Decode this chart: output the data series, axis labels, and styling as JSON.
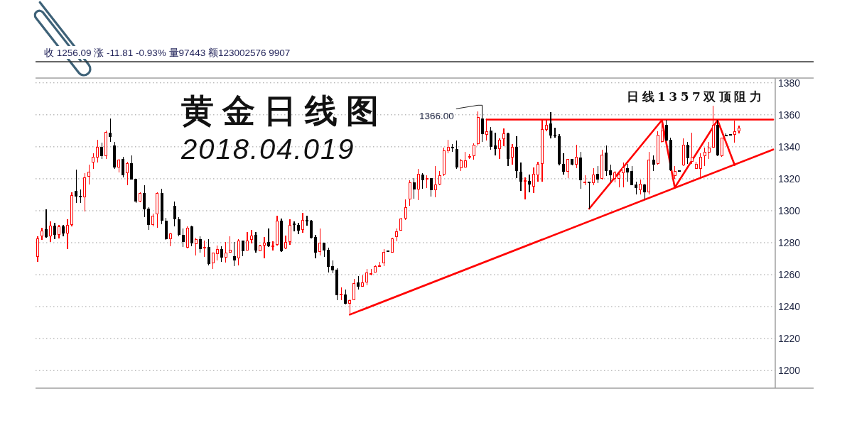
{
  "chart_data": {
    "type": "candlestick",
    "title": "黄金日线图",
    "subtitle": "2018.04.019",
    "annotations": [
      "收 1256.09 涨 -11.81 -0.93% 量97443 额123002576 9907",
      "1366.00",
      "日线1357双顶阻力"
    ],
    "categories": [
      null,
      null,
      null,
      null,
      null,
      null,
      null,
      null,
      null,
      null,
      null,
      null,
      null,
      null,
      null,
      null,
      null,
      null,
      null,
      null,
      null,
      null,
      null,
      null,
      null,
      null,
      null,
      null,
      null,
      null,
      null,
      null,
      null,
      null,
      null,
      null,
      null,
      null,
      null,
      null,
      null,
      null,
      null,
      null,
      null,
      null,
      null,
      null,
      null,
      null,
      null,
      null,
      null,
      null,
      null,
      null,
      null,
      null,
      null,
      null,
      null,
      null,
      null,
      null,
      null,
      null,
      null,
      null,
      null,
      null,
      null,
      null,
      null,
      null,
      null,
      null,
      null,
      null,
      null,
      null,
      null,
      null,
      null,
      null,
      null,
      null,
      null,
      null,
      null,
      null,
      null,
      null,
      null,
      null,
      null,
      null,
      null,
      null,
      null,
      null,
      null,
      null,
      null,
      null,
      null,
      null,
      null,
      null,
      null,
      null,
      null,
      null,
      null,
      null,
      null,
      null,
      null,
      null,
      null,
      null,
      null,
      null,
      null,
      null,
      null,
      null,
      null,
      null,
      null,
      null,
      null,
      null,
      null,
      null,
      null,
      null,
      null,
      null,
      null,
      null,
      null,
      null,
      null,
      null,
      null,
      null,
      null,
      null,
      null,
      null,
      null,
      null,
      null,
      null,
      null,
      null,
      null,
      null,
      null,
      null,
      null,
      null,
      null,
      null,
      null,
      null,
      null,
      null,
      null,
      null,
      null,
      null,
      null
    ],
    "ohlc": [
      [
        1271.2,
        1283.8,
        1268,
        1282.3
      ],
      [
        1284.2,
        1289.4,
        1281.6,
        1287.2
      ],
      [
        1288,
        1300.8,
        1283.2,
        1283.8
      ],
      [
        1284.2,
        1293.5,
        1280.5,
        1290.6
      ],
      [
        1290.6,
        1292.3,
        1282.3,
        1285
      ],
      [
        1285,
        1291,
        1282.6,
        1290
      ],
      [
        1290,
        1291,
        1284,
        1286
      ],
      [
        1286,
        1294.6,
        1276,
        1290.9
      ],
      [
        1291.2,
        1311.5,
        1290,
        1309.6
      ],
      [
        1312.3,
        1325.6,
        1305,
        1309.3
      ],
      [
        1309.2,
        1313.3,
        1305,
        1308.9
      ],
      [
        1308.6,
        1323.7,
        1299.4,
        1320.7
      ],
      [
        1321.4,
        1328.8,
        1316.4,
        1324.4
      ],
      [
        1330.3,
        1335.9,
        1326.3,
        1333.3
      ],
      [
        1333.7,
        1344.3,
        1330,
        1339.6
      ],
      [
        1339.6,
        1342.6,
        1332.2,
        1334.4
      ],
      [
        1334.4,
        1350.3,
        1332.5,
        1349.2
      ],
      [
        1348.8,
        1357.6,
        1342.9,
        1346.3
      ],
      [
        1340.4,
        1342.9,
        1326.3,
        1327.5
      ],
      [
        1327.5,
        1332.5,
        1324.1,
        1331.8
      ],
      [
        1332.2,
        1333.7,
        1320.7,
        1322.6
      ],
      [
        1323.7,
        1330.8,
        1316,
        1329.3
      ],
      [
        1329.3,
        1334.4,
        1319.5,
        1319.7
      ],
      [
        1319.7,
        1320,
        1304.9,
        1305.9
      ],
      [
        1305.9,
        1311.5,
        1305.3,
        1310.8
      ],
      [
        1310.8,
        1316,
        1296,
        1301.2
      ],
      [
        1301.2,
        1302,
        1288.2,
        1291.2
      ],
      [
        1291.2,
        1298.3,
        1290.1,
        1296.8
      ],
      [
        1298,
        1311.5,
        1289.4,
        1310.8
      ],
      [
        1310.8,
        1313.8,
        1291.6,
        1293.8
      ],
      [
        1293.5,
        1295.6,
        1281.8,
        1282.3
      ],
      [
        1282.3,
        1286.4,
        1277.9,
        1285.7
      ],
      [
        1303,
        1305.6,
        1290.4,
        1295
      ],
      [
        1294.6,
        1296,
        1284.2,
        1285.3
      ],
      [
        1284.7,
        1288.7,
        1277.3,
        1280.8
      ],
      [
        1277,
        1290.1,
        1276.5,
        1289
      ],
      [
        1290.1,
        1290.8,
        1277.7,
        1279.9
      ],
      [
        1279.4,
        1283.1,
        1272.1,
        1281.8
      ],
      [
        1281.8,
        1283.8,
        1274,
        1276.2
      ],
      [
        1276.8,
        1281.3,
        1271.1,
        1277.1
      ],
      [
        1276.9,
        1282.3,
        1266,
        1266.7
      ],
      [
        1267.2,
        1274,
        1263.8,
        1273.6
      ],
      [
        1273,
        1278.4,
        1268.9,
        1275.8
      ],
      [
        1275.8,
        1278,
        1268.2,
        1270.7
      ],
      [
        1270.7,
        1280.6,
        1267.7,
        1273.6
      ],
      [
        1274,
        1283.8,
        1273.6,
        1275.2
      ],
      [
        1271.5,
        1280.3,
        1265.5,
        1269.2
      ],
      [
        1270.4,
        1282.3,
        1266,
        1281.3
      ],
      [
        1281.3,
        1281.5,
        1271.5,
        1275
      ],
      [
        1275.5,
        1286.7,
        1275,
        1280.9
      ],
      [
        1281.8,
        1287.9,
        1279.4,
        1284.2
      ],
      [
        1284.7,
        1286.7,
        1273.6,
        1275.5
      ],
      [
        1275,
        1278.8,
        1274.5,
        1278
      ],
      [
        1278.4,
        1283.5,
        1270.1,
        1279.9
      ],
      [
        1280.3,
        1289,
        1277.4,
        1278
      ],
      [
        1277.7,
        1280.9,
        1275,
        1278
      ],
      [
        1278.8,
        1296.9,
        1278.4,
        1293.4
      ],
      [
        1293.7,
        1294.9,
        1274.2,
        1274.7
      ],
      [
        1276.5,
        1284.5,
        1276,
        1280.3
      ],
      [
        1280.6,
        1294.5,
        1278.8,
        1291.1
      ],
      [
        1291.6,
        1293.4,
        1287.2,
        1291.4
      ],
      [
        1291.1,
        1292.6,
        1285.3,
        1287.6
      ],
      [
        1288.2,
        1298.8,
        1286.4,
        1294
      ],
      [
        1294.1,
        1296.9,
        1290.8,
        1293.9
      ],
      [
        1293.4,
        1294,
        1282.8,
        1283.2
      ],
      [
        1283.2,
        1285,
        1270.1,
        1274
      ],
      [
        1274.5,
        1289,
        1271.8,
        1279.9
      ],
      [
        1279.9,
        1280.2,
        1271.1,
        1275.5
      ],
      [
        1275.5,
        1276.9,
        1261.3,
        1265.3
      ],
      [
        1265.3,
        1268.9,
        1260.9,
        1263.1
      ],
      [
        1262.8,
        1264.2,
        1244.1,
        1247.3
      ],
      [
        1247.3,
        1252.1,
        1244.1,
        1247.9
      ],
      [
        1247.3,
        1250.7,
        1241.2,
        1241.9
      ],
      [
        1242.2,
        1244.7,
        1235.8,
        1243.9
      ],
      [
        1244.2,
        1257.2,
        1243.9,
        1254.5
      ],
      [
        1255,
        1259,
        1250.6,
        1252.5
      ],
      [
        1252.8,
        1259.4,
        1252.5,
        1255
      ],
      [
        1255.4,
        1263.4,
        1253.5,
        1261.3
      ],
      [
        1260.4,
        1263.4,
        1259.4,
        1260.6
      ],
      [
        1261.6,
        1266,
        1261.3,
        1265.3
      ],
      [
        1265.4,
        1267.8,
        1264.9,
        1265.6
      ],
      [
        1267.2,
        1276.1,
        1265.3,
        1274.1
      ],
      [
        1275.1,
        1275.3,
        1274.8,
        1274.9
      ],
      [
        1274.1,
        1283,
        1273.7,
        1282.5
      ],
      [
        1283.7,
        1288.9,
        1280.8,
        1287
      ],
      [
        1287.8,
        1295.5,
        1287.4,
        1294.8
      ],
      [
        1295.5,
        1307,
        1294,
        1302.1
      ],
      [
        1307.3,
        1319.1,
        1303.2,
        1317.3
      ],
      [
        1317.3,
        1320.5,
        1307.6,
        1313.5
      ],
      [
        1313.5,
        1326.1,
        1306.5,
        1322.7
      ],
      [
        1322.3,
        1323.5,
        1313.9,
        1319.4
      ],
      [
        1320.1,
        1322.3,
        1314.3,
        1320.3
      ],
      [
        1320.1,
        1320.3,
        1308.7,
        1312.9
      ],
      [
        1312.9,
        1327.9,
        1308.5,
        1316.1
      ],
      [
        1316.8,
        1324.9,
        1316.1,
        1322
      ],
      [
        1322.7,
        1339.7,
        1321.7,
        1337.5
      ],
      [
        1337.5,
        1344.4,
        1336,
        1339.7
      ],
      [
        1339.8,
        1341.9,
        1336.7,
        1339.5
      ],
      [
        1338.5,
        1343.8,
        1326.1,
        1327.2
      ],
      [
        1326.7,
        1332.6,
        1324.7,
        1331.1
      ],
      [
        1327.2,
        1337,
        1327,
        1331.1
      ],
      [
        1333.8,
        1335.6,
        1332.3,
        1334.1
      ],
      [
        1334.5,
        1342.3,
        1332,
        1341.1
      ],
      [
        1341.9,
        1362.2,
        1340.9,
        1358.2
      ],
      [
        1357.5,
        1366,
        1343,
        1348.3
      ],
      [
        1347.9,
        1357.5,
        1343.9,
        1349.3
      ],
      [
        1350.1,
        1352.3,
        1338.2,
        1340
      ],
      [
        1340.4,
        1348.9,
        1334.5,
        1339
      ],
      [
        1339,
        1345.3,
        1332.6,
        1344.1
      ],
      [
        1344.9,
        1351.6,
        1340.4,
        1348.3
      ],
      [
        1348.3,
        1348.9,
        1327.9,
        1332.6
      ],
      [
        1333.5,
        1341.5,
        1329,
        1339.7
      ],
      [
        1339.7,
        1346.4,
        1320.4,
        1324.9
      ],
      [
        1324.1,
        1330.1,
        1312.3,
        1318.2
      ],
      [
        1318.3,
        1320.7,
        1307.1,
        1318.7
      ],
      [
        1318.2,
        1322.7,
        1311.6,
        1316.7
      ],
      [
        1315.3,
        1327.1,
        1311.3,
        1322.7
      ],
      [
        1322.2,
        1330.8,
        1318.2,
        1329
      ],
      [
        1329.6,
        1356.7,
        1318.2,
        1350.8
      ],
      [
        1350.8,
        1356.7,
        1349.8,
        1353.3
      ],
      [
        1354.2,
        1361.9,
        1345.3,
        1347.1
      ],
      [
        1347.3,
        1351.9,
        1345.9,
        1347.1
      ],
      [
        1346.4,
        1347.9,
        1328.6,
        1329.3
      ],
      [
        1329,
        1336,
        1322.7,
        1324.6
      ],
      [
        1324.6,
        1332.6,
        1320.4,
        1332.3
      ],
      [
        1332,
        1332.6,
        1328.6,
        1329
      ],
      [
        1329,
        1341.2,
        1326.7,
        1333.5
      ],
      [
        1333,
        1336.7,
        1313.8,
        1319.3
      ],
      [
        1317.9,
        1322.2,
        1316,
        1318.1
      ],
      [
        1318,
        1318.3,
        1301.3,
        1317.3
      ],
      [
        1317.5,
        1326.4,
        1316,
        1322.2
      ],
      [
        1323,
        1327.9,
        1317.5,
        1319.7
      ],
      [
        1320.1,
        1338.2,
        1319.7,
        1335
      ],
      [
        1336,
        1340.7,
        1321.9,
        1325.2
      ],
      [
        1325.2,
        1329,
        1318.2,
        1322.2
      ],
      [
        1320.1,
        1324.9,
        1317.8,
        1323.7
      ],
      [
        1320,
        1324.9,
        1314.5,
        1322.5
      ],
      [
        1323.7,
        1330.1,
        1314.5,
        1326.7
      ],
      [
        1326.4,
        1329.3,
        1318.2,
        1324.1
      ],
      [
        1324.6,
        1327.9,
        1316,
        1316.3
      ],
      [
        1316.3,
        1318.2,
        1310.1,
        1314.5
      ],
      [
        1313,
        1319.7,
        1310.1,
        1316.7
      ],
      [
        1316,
        1316.7,
        1307.1,
        1311.6
      ],
      [
        1311.6,
        1336.7,
        1310.1,
        1331.6
      ],
      [
        1331.6,
        1334.5,
        1324.9,
        1329
      ],
      [
        1329.3,
        1349.8,
        1329,
        1347.4
      ],
      [
        1343.4,
        1356.7,
        1342.7,
        1350.1
      ],
      [
        1353.3,
        1356.7,
        1343.4,
        1344.1
      ],
      [
        1344.1,
        1345.6,
        1324.9,
        1325.6
      ],
      [
        1321.9,
        1327.9,
        1320,
        1324.6
      ],
      [
        1325.2,
        1325.3,
        1324.8,
        1325
      ],
      [
        1328.6,
        1345.2,
        1327.9,
        1340.9
      ],
      [
        1341.2,
        1343,
        1329.3,
        1333
      ],
      [
        1331,
        1348.9,
        1329.3,
        1333.5
      ],
      [
        1326.4,
        1330.8,
        1326,
        1329
      ],
      [
        1326.4,
        1336,
        1320.7,
        1333.5
      ],
      [
        1334.5,
        1339.7,
        1327.9,
        1336.4
      ],
      [
        1336.7,
        1343,
        1332.3,
        1339.4
      ],
      [
        1339.7,
        1365.6,
        1339.4,
        1353.3
      ],
      [
        1353.3,
        1356.7,
        1334.1,
        1335
      ],
      [
        1334.5,
        1345.9,
        1333.8,
        1345.3
      ],
      [
        1347.3,
        1348.4,
        1346.5,
        1347
      ],
      [
        1347.5,
        1347.6,
        1347.3,
        1347.4
      ],
      [
        1347.9,
        1356.3,
        1342.7,
        1349.3
      ],
      [
        1349.8,
        1353.3,
        1348.3,
        1351.6
      ],
      null,
      null,
      null,
      null,
      null,
      null,
      null,
      null
    ],
    "colors": [
      "#ff0000",
      "#ff0000",
      "#000000",
      "#ff0000",
      "#000000",
      "#ff0000",
      "#000000",
      "#ff0000",
      "#ff0000",
      "#000000",
      "#000000",
      "#ff0000",
      "#ff0000",
      "#ff0000",
      "#ff0000",
      "#000000",
      "#ff0000",
      "#000000",
      "#000000",
      "#ff0000",
      "#000000",
      "#ff0000",
      "#000000",
      "#000000",
      "#ff0000",
      "#000000",
      "#000000",
      "#ff0000",
      "#ff0000",
      "#000000",
      "#000000",
      "#ff0000",
      "#000000",
      "#000000",
      "#000000",
      "#ff0000",
      "#000000",
      "#ff0000",
      "#000000",
      "#ff0000",
      "#000000",
      "#ff0000",
      "#ff0000",
      "#000000",
      "#ff0000",
      "#ff0000",
      "#000000",
      "#ff0000",
      "#000000",
      "#ff0000",
      "#ff0000",
      "#000000",
      "#ff0000",
      "#ff0000",
      "#000000",
      "#ff0000",
      "#ff0000",
      "#000000",
      "#ff0000",
      "#ff0000",
      "#000000",
      "#000000",
      "#ff0000",
      "#000000",
      "#000000",
      "#000000",
      "#ff0000",
      "#000000",
      "#000000",
      "#000000",
      "#000000",
      "#ff0000",
      "#000000",
      "#ff0000",
      "#ff0000",
      "#000000",
      "#ff0000",
      "#ff0000",
      "#ff0000",
      "#ff0000",
      "#ff0000",
      "#ff0000",
      "#000000",
      "#ff0000",
      "#ff0000",
      "#ff0000",
      "#ff0000",
      "#ff0000",
      "#000000",
      "#ff0000",
      "#000000",
      "#ff0000",
      "#000000",
      "#ff0000",
      "#ff0000",
      "#ff0000",
      "#ff0000",
      "#000000",
      "#000000",
      "#ff0000",
      "#ff0000",
      "#ff0000",
      "#ff0000",
      "#ff0000",
      "#000000",
      "#ff0000",
      "#000000",
      "#000000",
      "#ff0000",
      "#ff0000",
      "#000000",
      "#ff0000",
      "#000000",
      "#000000",
      "#ff0000",
      "#000000",
      "#ff0000",
      "#ff0000",
      "#ff0000",
      "#ff0000",
      "#000000",
      "#000000",
      "#000000",
      "#000000",
      "#ff0000",
      "#000000",
      "#ff0000",
      "#000000",
      "#ff0000",
      "#000000",
      "#ff0000",
      "#000000",
      "#ff0000",
      "#000000",
      "#000000",
      "#ff0000",
      "#ff0000",
      "#ff0000",
      "#000000",
      "#000000",
      "#000000",
      "#ff0000",
      "#000000",
      "#ff0000",
      "#000000",
      "#ff0000",
      "#ff0000",
      "#000000",
      "#000000",
      "#ff0000",
      "#000000",
      "#ff0000",
      "#000000",
      "#ff0000",
      "#ff0000",
      "#ff0000",
      "#ff0000",
      "#ff0000",
      "#ff0000",
      "#000000",
      "#ff0000",
      "#000000",
      "#000000",
      "#ff0000",
      "#ff0000",
      null,
      null,
      null,
      null,
      null,
      null,
      null,
      null
    ],
    "series": [
      {
        "type": "line",
        "color": "#ff0000",
        "values": [
          null,
          null,
          null,
          null,
          null,
          null,
          null,
          null,
          null,
          null,
          null,
          null,
          null,
          null,
          null,
          null,
          null,
          null,
          null,
          null,
          null,
          null,
          null,
          null,
          null,
          null,
          null,
          null,
          null,
          null,
          null,
          null,
          null,
          null,
          null,
          null,
          null,
          null,
          null,
          null,
          null,
          null,
          null,
          null,
          null,
          null,
          null,
          null,
          null,
          null,
          null,
          null,
          null,
          null,
          null,
          null,
          null,
          null,
          null,
          null,
          null,
          null,
          null,
          null,
          null,
          null,
          null,
          null,
          null,
          null,
          null,
          null,
          null,
          null,
          null,
          null,
          null,
          null,
          null,
          null,
          null,
          null,
          null,
          null,
          null,
          null,
          null,
          null,
          null,
          null,
          null,
          null,
          null,
          null,
          null,
          null,
          null,
          null,
          null,
          null,
          null,
          null,
          null,
          null,
          null,
          1357,
          null,
          null,
          null,
          null,
          null,
          null,
          null,
          null,
          null,
          null,
          null,
          null,
          null,
          null,
          null,
          null,
          null,
          null,
          null,
          null,
          null,
          null,
          null,
          null,
          null,
          null,
          null,
          null,
          null,
          null,
          null,
          null,
          null,
          null,
          null,
          null,
          null,
          null,
          null,
          null,
          null,
          null,
          null,
          null,
          null,
          null,
          null,
          null,
          null,
          null,
          null,
          null,
          null,
          null,
          null,
          null,
          null,
          null,
          null,
          null,
          null,
          null,
          null,
          null,
          null,
          null,
          1357
        ]
      },
      {
        "type": "line",
        "color": "#ff0000",
        "values": [
          null,
          null,
          null,
          null,
          null,
          null,
          null,
          null,
          null,
          null,
          null,
          null,
          null,
          null,
          null,
          null,
          null,
          null,
          null,
          null,
          null,
          null,
          null,
          null,
          null,
          null,
          null,
          null,
          null,
          null,
          null,
          null,
          null,
          null,
          null,
          null,
          null,
          null,
          null,
          null,
          null,
          null,
          null,
          null,
          null,
          null,
          null,
          null,
          null,
          null,
          null,
          null,
          null,
          null,
          null,
          null,
          null,
          null,
          null,
          null,
          null,
          null,
          null,
          null,
          null,
          null,
          null,
          null,
          null,
          null,
          null,
          null,
          null,
          1235,
          null,
          null,
          null,
          null,
          null,
          null,
          null,
          null,
          null,
          null,
          null,
          null,
          null,
          null,
          null,
          null,
          null,
          null,
          null,
          null,
          null,
          null,
          null,
          null,
          null,
          null,
          null,
          null,
          null,
          null,
          null,
          null,
          null,
          null,
          null,
          null,
          null,
          null,
          null,
          null,
          null,
          null,
          null,
          null,
          null,
          null,
          null,
          null,
          null,
          null,
          null,
          null,
          null,
          null,
          null,
          null,
          null,
          null,
          null,
          null,
          null,
          null,
          null,
          null,
          null,
          null,
          null,
          null,
          null,
          null,
          null,
          null,
          null,
          null,
          null,
          null,
          null,
          null,
          null,
          null,
          null,
          null,
          null,
          null,
          null,
          null,
          null,
          null,
          null,
          null,
          null,
          null,
          null,
          null,
          null,
          null,
          null,
          null,
          1338.3
        ]
      },
      {
        "type": "line",
        "color": "#ff0000",
        "values": [
          null,
          null,
          null,
          null,
          null,
          null,
          null,
          null,
          null,
          null,
          null,
          null,
          null,
          null,
          null,
          null,
          null,
          null,
          null,
          null,
          null,
          null,
          null,
          null,
          null,
          null,
          null,
          null,
          null,
          null,
          null,
          null,
          null,
          null,
          null,
          null,
          null,
          null,
          null,
          null,
          null,
          null,
          null,
          null,
          null,
          null,
          null,
          null,
          null,
          null,
          null,
          null,
          null,
          null,
          null,
          null,
          null,
          null,
          null,
          null,
          null,
          null,
          null,
          null,
          null,
          null,
          null,
          null,
          null,
          null,
          null,
          null,
          null,
          null,
          null,
          null,
          null,
          null,
          null,
          null,
          null,
          null,
          null,
          null,
          null,
          null,
          null,
          null,
          null,
          null,
          null,
          null,
          null,
          null,
          null,
          null,
          null,
          null,
          null,
          null,
          null,
          null,
          null,
          null,
          null,
          null,
          null,
          null,
          null,
          null,
          null,
          null,
          null,
          null,
          null,
          null,
          null,
          null,
          null,
          null,
          null,
          null,
          null,
          null,
          null,
          null,
          null,
          null,
          null,
          1301.3,
          null,
          null,
          null,
          null,
          null,
          null,
          null,
          null,
          null,
          null,
          null,
          null,
          null,
          null,
          null,
          null,
          1356.7,
          null,
          null,
          1314.5,
          null,
          null,
          null,
          null,
          null,
          null,
          null,
          null,
          null,
          1356.7,
          null,
          null,
          null,
          1328.6,
          null,
          null,
          null,
          null,
          null,
          null,
          null,
          null,
          null
        ]
      }
    ],
    "ylim": [
      1189,
      1383
    ],
    "yticks": [
      1200,
      1220,
      1240,
      1260,
      1280,
      1300,
      1320,
      1340,
      1360,
      1380
    ],
    "grid": "y",
    "tick_labels": "y"
  }
}
